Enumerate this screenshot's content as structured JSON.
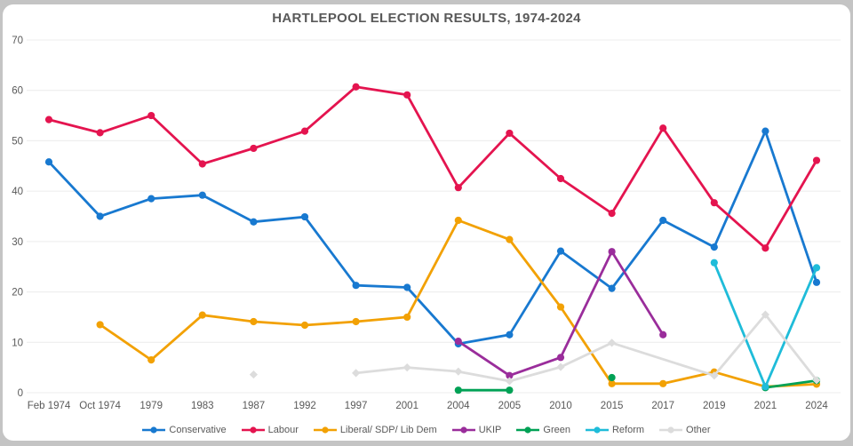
{
  "title": "HARTLEPOOL ELECTION RESULTS, 1974-2024",
  "colors": {
    "conservative": "#1879D0",
    "labour": "#E4144F",
    "liberal_sdp_libdem": "#F2A104",
    "ukip": "#9A2D9B",
    "green": "#00A155",
    "reform": "#1FBCD9",
    "other": "#DCDCDC",
    "gridline": "#ECECEC",
    "axis_text": "#595959",
    "card_background": "#FFFFFF",
    "page_background": "#C4C4C4"
  },
  "chart_data": {
    "type": "line",
    "title": "HARTLEPOOL ELECTION RESULTS, 1974-2024",
    "xlabel": "",
    "ylabel": "",
    "ylim": [
      0,
      70
    ],
    "yticks": [
      0,
      10,
      20,
      30,
      40,
      50,
      60,
      70
    ],
    "grid": true,
    "legend_position": "bottom",
    "categories": [
      "Feb 1974",
      "Oct 1974",
      "1979",
      "1983",
      "1987",
      "1992",
      "1997",
      "2001",
      "2004",
      "2005",
      "2010",
      "2015",
      "2017",
      "2019",
      "2021",
      "2024"
    ],
    "series": [
      {
        "name": "Conservative",
        "color": "#1879D0",
        "marker": "circle",
        "segments": [
          [
            [
              "Feb 1974",
              45.8
            ],
            [
              "Oct 1974",
              35.0
            ],
            [
              "1979",
              38.5
            ],
            [
              "1983",
              39.2
            ],
            [
              "1987",
              33.9
            ],
            [
              "1992",
              34.9
            ],
            [
              "1997",
              21.3
            ],
            [
              "2001",
              20.9
            ],
            [
              "2004",
              9.7
            ],
            [
              "2005",
              11.5
            ],
            [
              "2010",
              28.1
            ],
            [
              "2015",
              20.7
            ],
            [
              "2017",
              34.2
            ],
            [
              "2019",
              28.9
            ],
            [
              "2021",
              51.9
            ],
            [
              "2024",
              21.9
            ]
          ]
        ]
      },
      {
        "name": "Labour",
        "color": "#E4144F",
        "marker": "circle",
        "segments": [
          [
            [
              "Feb 1974",
              54.2
            ],
            [
              "Oct 1974",
              51.6
            ],
            [
              "1979",
              55.0
            ],
            [
              "1983",
              45.4
            ],
            [
              "1987",
              48.5
            ],
            [
              "1992",
              51.9
            ],
            [
              "1997",
              60.7
            ],
            [
              "2001",
              59.1
            ],
            [
              "2004",
              40.7
            ],
            [
              "2005",
              51.5
            ],
            [
              "2010",
              42.5
            ],
            [
              "2015",
              35.6
            ],
            [
              "2017",
              52.5
            ],
            [
              "2019",
              37.7
            ],
            [
              "2021",
              28.7
            ],
            [
              "2024",
              46.1
            ]
          ]
        ]
      },
      {
        "name": "Liberal/ SDP/ Lib Dem",
        "color": "#F2A104",
        "marker": "circle",
        "segments": [
          [
            [
              "Oct 1974",
              13.5
            ],
            [
              "1979",
              6.5
            ],
            [
              "1983",
              15.4
            ],
            [
              "1987",
              14.1
            ],
            [
              "1992",
              13.4
            ],
            [
              "1997",
              14.1
            ],
            [
              "2001",
              15.0
            ],
            [
              "2004",
              34.2
            ],
            [
              "2005",
              30.4
            ],
            [
              "2010",
              17.0
            ],
            [
              "2015",
              1.8
            ],
            [
              "2017",
              1.8
            ],
            [
              "2019",
              4.1
            ],
            [
              "2021",
              1.2
            ],
            [
              "2024",
              1.7
            ]
          ]
        ]
      },
      {
        "name": "UKIP",
        "color": "#9A2D9B",
        "marker": "circle",
        "segments": [
          [
            [
              "2004",
              10.2
            ],
            [
              "2005",
              3.4
            ],
            [
              "2010",
              7.0
            ],
            [
              "2015",
              28.0
            ],
            [
              "2017",
              11.5
            ]
          ]
        ]
      },
      {
        "name": "Green",
        "color": "#00A155",
        "marker": "circle",
        "segments": [
          [
            [
              "2004",
              0.5
            ],
            [
              "2005",
              0.5
            ]
          ],
          [
            [
              "2015",
              3.0
            ]
          ],
          [
            [
              "2021",
              1.0
            ],
            [
              "2024",
              2.4
            ]
          ]
        ]
      },
      {
        "name": "Reform",
        "color": "#1FBCD9",
        "marker": "circle",
        "segments": [
          [
            [
              "2019",
              25.8
            ],
            [
              "2021",
              1.2
            ],
            [
              "2024",
              24.8
            ]
          ]
        ]
      },
      {
        "name": "Other",
        "color": "#DCDCDC",
        "marker": "diamond",
        "segments": [
          [
            [
              "1987",
              3.6
            ]
          ],
          [
            [
              "1997",
              3.9
            ],
            [
              "2001",
              5.0
            ],
            [
              "2004",
              4.2
            ],
            [
              "2005",
              2.3
            ],
            [
              "2010",
              5.1
            ],
            [
              "2015",
              9.9
            ],
            [
              "2019",
              3.4
            ],
            [
              "2021",
              15.5
            ],
            [
              "2024",
              2.5
            ]
          ]
        ]
      }
    ]
  }
}
